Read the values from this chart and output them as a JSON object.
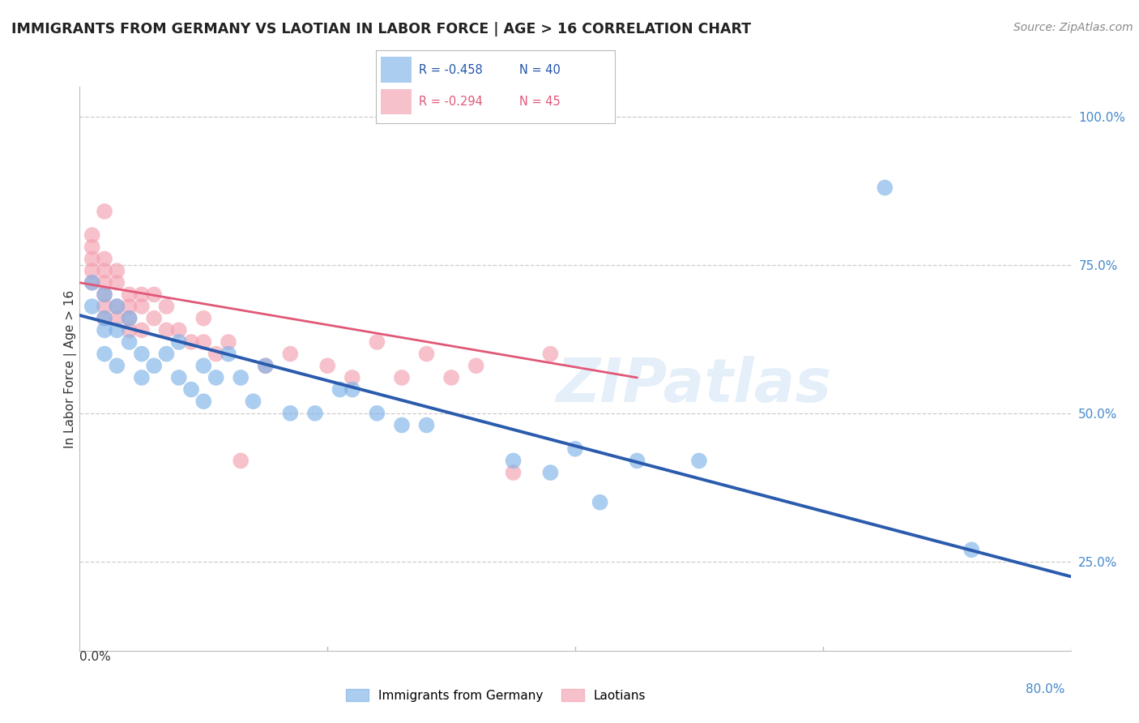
{
  "title": "IMMIGRANTS FROM GERMANY VS LAOTIAN IN LABOR FORCE | AGE > 16 CORRELATION CHART",
  "source": "Source: ZipAtlas.com",
  "ylabel": "In Labor Force | Age > 16",
  "ylabel_right_ticks": [
    "100.0%",
    "75.0%",
    "50.0%",
    "25.0%"
  ],
  "ylabel_right_vals": [
    1.0,
    0.75,
    0.5,
    0.25
  ],
  "xlim": [
    0.0,
    0.8
  ],
  "ylim": [
    0.1,
    1.05
  ],
  "legend_blue_r": "R = -0.458",
  "legend_blue_n": "N = 40",
  "legend_pink_r": "R = -0.294",
  "legend_pink_n": "N = 45",
  "blue_color": "#7EB3E8",
  "pink_color": "#F4A0B0",
  "blue_line_color": "#2B5BAD",
  "pink_line_color": "#E05878",
  "watermark": "ZIPatlas",
  "background_color": "#ffffff",
  "grid_color": "#cccccc",
  "blue_scatter_x": [
    0.01,
    0.01,
    0.02,
    0.02,
    0.02,
    0.02,
    0.03,
    0.03,
    0.03,
    0.04,
    0.04,
    0.05,
    0.05,
    0.06,
    0.07,
    0.08,
    0.08,
    0.09,
    0.1,
    0.1,
    0.11,
    0.12,
    0.13,
    0.14,
    0.15,
    0.17,
    0.19,
    0.21,
    0.22,
    0.24,
    0.26,
    0.28,
    0.35,
    0.38,
    0.4,
    0.42,
    0.45,
    0.5,
    0.65,
    0.72
  ],
  "blue_scatter_y": [
    0.68,
    0.72,
    0.66,
    0.7,
    0.64,
    0.6,
    0.68,
    0.64,
    0.58,
    0.66,
    0.62,
    0.6,
    0.56,
    0.58,
    0.6,
    0.62,
    0.56,
    0.54,
    0.52,
    0.58,
    0.56,
    0.6,
    0.56,
    0.52,
    0.58,
    0.5,
    0.5,
    0.54,
    0.54,
    0.5,
    0.48,
    0.48,
    0.42,
    0.4,
    0.44,
    0.35,
    0.42,
    0.42,
    0.88,
    0.27
  ],
  "pink_scatter_x": [
    0.01,
    0.01,
    0.01,
    0.01,
    0.01,
    0.02,
    0.02,
    0.02,
    0.02,
    0.02,
    0.02,
    0.02,
    0.03,
    0.03,
    0.03,
    0.03,
    0.04,
    0.04,
    0.04,
    0.04,
    0.05,
    0.05,
    0.05,
    0.06,
    0.06,
    0.07,
    0.07,
    0.08,
    0.09,
    0.1,
    0.1,
    0.11,
    0.12,
    0.13,
    0.15,
    0.17,
    0.2,
    0.22,
    0.24,
    0.26,
    0.28,
    0.3,
    0.32,
    0.35,
    0.38
  ],
  "pink_scatter_y": [
    0.72,
    0.74,
    0.76,
    0.78,
    0.8,
    0.72,
    0.74,
    0.76,
    0.7,
    0.68,
    0.66,
    0.84,
    0.72,
    0.74,
    0.68,
    0.66,
    0.7,
    0.68,
    0.66,
    0.64,
    0.7,
    0.68,
    0.64,
    0.7,
    0.66,
    0.68,
    0.64,
    0.64,
    0.62,
    0.66,
    0.62,
    0.6,
    0.62,
    0.42,
    0.58,
    0.6,
    0.58,
    0.56,
    0.62,
    0.56,
    0.6,
    0.56,
    0.58,
    0.4,
    0.6
  ],
  "blue_line_x0": 0.0,
  "blue_line_x1": 0.8,
  "blue_line_y0": 0.665,
  "blue_line_y1": 0.225,
  "pink_line_x0": 0.0,
  "pink_line_x1": 0.45,
  "pink_line_y0": 0.72,
  "pink_line_y1": 0.56
}
